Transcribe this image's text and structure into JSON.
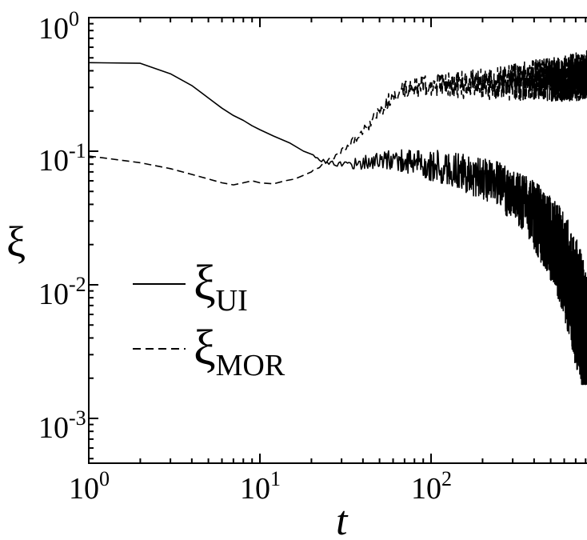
{
  "chart_data": {
    "type": "line",
    "xlabel": "t",
    "ylabel": "ξ",
    "xscale": "log",
    "yscale": "log",
    "xlim": [
      1,
      850
    ],
    "ylim": [
      0.0005,
      1
    ],
    "grid": false,
    "legend_position": "left-middle",
    "x_ticks": [
      {
        "base": "10",
        "exp": "0",
        "value": 1
      },
      {
        "base": "10",
        "exp": "1",
        "value": 10
      },
      {
        "base": "10",
        "exp": "2",
        "value": 100
      }
    ],
    "y_ticks": [
      {
        "base": "10",
        "exp": "0",
        "value": 1
      },
      {
        "base": "10",
        "exp": "-1",
        "value": 0.1
      },
      {
        "base": "10",
        "exp": "-2",
        "value": 0.01
      },
      {
        "base": "10",
        "exp": "-3",
        "value": 0.001
      }
    ],
    "series": [
      {
        "name": "ξUI",
        "legend_main": "ξ",
        "legend_sub": "UI",
        "style": "solid",
        "noise": 0.25,
        "x": [
          1,
          2,
          3,
          4,
          5,
          6,
          7,
          8,
          9,
          10,
          12,
          15,
          18,
          20,
          22,
          25,
          30,
          40,
          50,
          60,
          70,
          80,
          100,
          120,
          150,
          200,
          250,
          300,
          350,
          400,
          450,
          500,
          550,
          600,
          650,
          700,
          750,
          800,
          850
        ],
        "values": [
          0.46,
          0.455,
          0.38,
          0.31,
          0.25,
          0.21,
          0.185,
          0.17,
          0.155,
          0.145,
          0.13,
          0.115,
          0.1,
          0.095,
          0.088,
          0.082,
          0.08,
          0.082,
          0.085,
          0.086,
          0.085,
          0.083,
          0.078,
          0.075,
          0.07,
          0.063,
          0.055,
          0.047,
          0.04,
          0.033,
          0.027,
          0.022,
          0.018,
          0.014,
          0.01,
          0.0075,
          0.0052,
          0.0033,
          0.003
        ]
      },
      {
        "name": "ξMOR",
        "legend_main": "ξ",
        "legend_sub": "MOR",
        "style": "dashed",
        "noise": 0.18,
        "x": [
          1,
          2,
          3,
          4,
          5,
          6,
          7,
          8,
          9,
          10,
          12,
          14,
          16,
          18,
          20,
          25,
          30,
          40,
          50,
          60,
          70,
          80,
          100,
          150,
          200,
          300,
          400,
          500,
          600,
          700,
          800,
          850
        ],
        "values": [
          0.092,
          0.082,
          0.074,
          0.067,
          0.062,
          0.058,
          0.056,
          0.058,
          0.06,
          0.058,
          0.057,
          0.06,
          0.062,
          0.066,
          0.07,
          0.085,
          0.1,
          0.14,
          0.2,
          0.26,
          0.29,
          0.3,
          0.31,
          0.315,
          0.32,
          0.33,
          0.34,
          0.345,
          0.35,
          0.36,
          0.37,
          0.38
        ]
      }
    ]
  }
}
